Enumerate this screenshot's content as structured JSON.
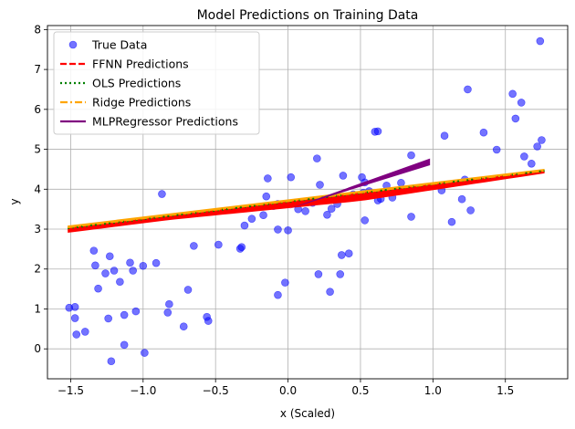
{
  "chart_data": {
    "type": "scatter",
    "title": "Model Predictions on Training Data",
    "xlabel": "x (Scaled)",
    "ylabel": "y",
    "xlim": [
      -1.66,
      1.93
    ],
    "ylim": [
      -0.75,
      8.1
    ],
    "xticks": [
      -1.5,
      -1.0,
      -0.5,
      0.0,
      0.5,
      1.0,
      1.5
    ],
    "xtick_labels": [
      "−1.5",
      "−1.0",
      "−0.5",
      "0.0",
      "0.5",
      "1.0",
      "1.5"
    ],
    "yticks": [
      0,
      1,
      2,
      3,
      4,
      5,
      6,
      7,
      8
    ],
    "ytick_labels": [
      "0",
      "1",
      "2",
      "3",
      "4",
      "5",
      "6",
      "7",
      "8"
    ],
    "grid": true,
    "legend_position": "top-left",
    "legend": [
      {
        "label": "True Data",
        "style": "marker",
        "color": "#6666ff"
      },
      {
        "label": "FFNN Predictions",
        "style": "dashed",
        "color": "#ff0000"
      },
      {
        "label": "OLS Predictions",
        "style": "dotted",
        "color": "#008000"
      },
      {
        "label": "Ridge Predictions",
        "style": "dashdot",
        "color": "#ffa500"
      },
      {
        "label": "MLPRegressor Predictions",
        "style": "solid",
        "color": "#800080"
      }
    ],
    "true_data": [
      [
        -1.51,
        1.03
      ],
      [
        -1.47,
        1.05
      ],
      [
        -1.47,
        0.77
      ],
      [
        -1.46,
        0.36
      ],
      [
        -1.4,
        0.43
      ],
      [
        -1.34,
        2.46
      ],
      [
        -1.33,
        2.09
      ],
      [
        -1.31,
        1.51
      ],
      [
        -1.26,
        1.89
      ],
      [
        -1.24,
        0.76
      ],
      [
        -1.23,
        2.32
      ],
      [
        -1.22,
        -0.31
      ],
      [
        -1.2,
        1.96
      ],
      [
        -1.16,
        1.68
      ],
      [
        -1.13,
        0.85
      ],
      [
        -1.13,
        0.1
      ],
      [
        -1.09,
        2.16
      ],
      [
        -1.07,
        1.96
      ],
      [
        -1.05,
        0.94
      ],
      [
        -1.0,
        2.08
      ],
      [
        -0.99,
        -0.1
      ],
      [
        -0.91,
        2.15
      ],
      [
        -0.87,
        3.88
      ],
      [
        -0.83,
        0.91
      ],
      [
        -0.82,
        1.12
      ],
      [
        -0.72,
        0.56
      ],
      [
        -0.69,
        1.48
      ],
      [
        -0.65,
        2.58
      ],
      [
        -0.56,
        0.8
      ],
      [
        -0.55,
        0.7
      ],
      [
        -0.48,
        2.61
      ],
      [
        -0.33,
        2.51
      ],
      [
        -0.32,
        2.55
      ],
      [
        -0.3,
        3.09
      ],
      [
        -0.25,
        3.26
      ],
      [
        -0.17,
        3.35
      ],
      [
        -0.15,
        3.82
      ],
      [
        -0.14,
        4.27
      ],
      [
        -0.1,
        3.58
      ],
      [
        -0.07,
        2.99
      ],
      [
        -0.07,
        1.35
      ],
      [
        -0.07,
        3.63
      ],
      [
        -0.02,
        1.66
      ],
      [
        0.0,
        2.97
      ],
      [
        0.02,
        4.3
      ],
      [
        0.07,
        3.5
      ],
      [
        0.12,
        3.45
      ],
      [
        0.17,
        3.66
      ],
      [
        0.2,
        4.77
      ],
      [
        0.21,
        1.87
      ],
      [
        0.22,
        4.11
      ],
      [
        0.27,
        3.36
      ],
      [
        0.29,
        1.43
      ],
      [
        0.3,
        3.51
      ],
      [
        0.34,
        3.63
      ],
      [
        0.36,
        1.87
      ],
      [
        0.37,
        2.35
      ],
      [
        0.38,
        4.34
      ],
      [
        0.42,
        2.39
      ],
      [
        0.45,
        3.87
      ],
      [
        0.51,
        4.3
      ],
      [
        0.52,
        3.91
      ],
      [
        0.53,
        3.22
      ],
      [
        0.53,
        4.17
      ],
      [
        0.56,
        3.95
      ],
      [
        0.6,
        5.44
      ],
      [
        0.62,
        5.45
      ],
      [
        0.62,
        3.72
      ],
      [
        0.64,
        3.76
      ],
      [
        0.68,
        4.09
      ],
      [
        0.72,
        3.79
      ],
      [
        0.78,
        4.16
      ],
      [
        0.85,
        3.31
      ],
      [
        0.85,
        4.85
      ],
      [
        1.06,
        3.97
      ],
      [
        1.08,
        5.34
      ],
      [
        1.13,
        3.18
      ],
      [
        1.2,
        3.75
      ],
      [
        1.22,
        4.24
      ],
      [
        1.24,
        6.5
      ],
      [
        1.26,
        3.47
      ],
      [
        1.35,
        5.42
      ],
      [
        1.44,
        4.99
      ],
      [
        1.55,
        6.39
      ],
      [
        1.57,
        5.77
      ],
      [
        1.61,
        6.17
      ],
      [
        1.63,
        4.82
      ],
      [
        1.68,
        4.64
      ],
      [
        1.72,
        5.07
      ],
      [
        1.74,
        7.71
      ],
      [
        1.75,
        5.23
      ]
    ],
    "ffnn": {
      "x": [
        -1.52,
        1.77
      ],
      "y_center": [
        2.97,
        4.43
      ],
      "band_width": [
        0.06,
        0.03
      ],
      "bulge_at": 0.5,
      "bulge": 0.12
    },
    "ols": {
      "x": [
        -1.52,
        1.77
      ],
      "y": [
        3.02,
        4.46
      ]
    },
    "ridge": {
      "x": [
        -1.52,
        1.77
      ],
      "y_center": [
        3.02,
        4.46
      ],
      "band_width": [
        0.07,
        0.05
      ]
    },
    "mlp": {
      "x": [
        0.0,
        0.98
      ],
      "y_top": [
        3.5,
        4.77
      ],
      "y_bottom": [
        3.5,
        4.6
      ]
    }
  }
}
